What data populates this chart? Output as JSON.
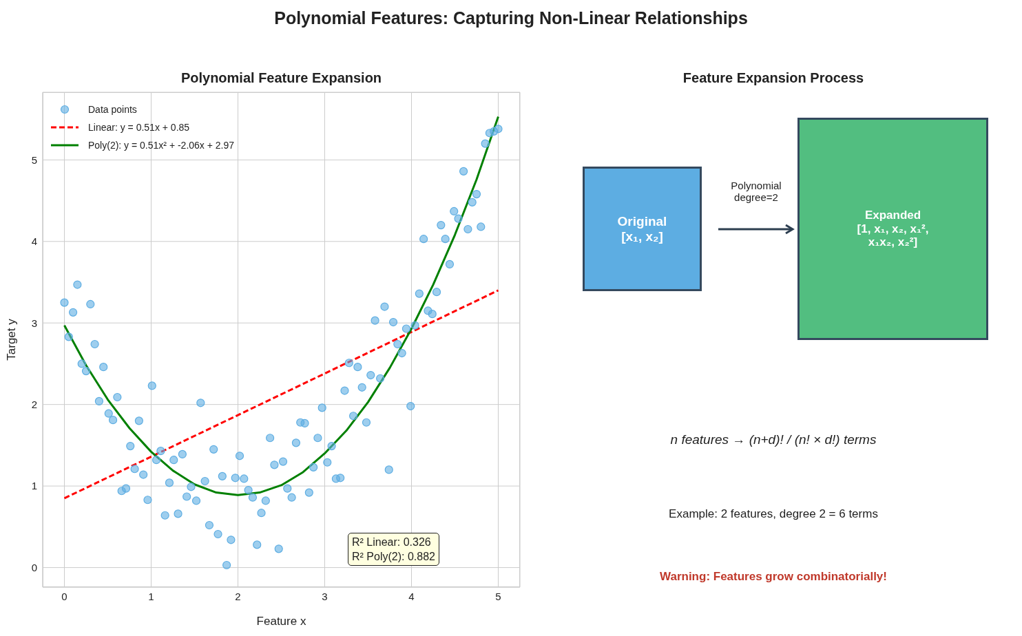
{
  "chart_data": [
    {
      "type": "scatter",
      "title": "Polynomial Features: Capturing Non-Linear Relationships",
      "subtitle": "Polynomial Feature Expansion",
      "xlabel": "Feature x",
      "ylabel": "Target y",
      "xlim": [
        -0.25,
        5.25
      ],
      "ylim": [
        -0.24,
        5.83
      ],
      "xticks": [
        0,
        1,
        2,
        3,
        4,
        5
      ],
      "yticks": [
        0,
        1,
        2,
        3,
        4,
        5
      ],
      "grid": true,
      "legend": "top left",
      "series": [
        {
          "name": "Data points",
          "type": "scatter",
          "marker": "circle",
          "color": "#5dade2",
          "x": [
            0,
            0.05,
            0.1,
            0.15,
            0.2,
            0.25,
            0.3,
            0.35,
            0.4,
            0.45,
            0.51,
            0.56,
            0.61,
            0.66,
            0.71,
            0.76,
            0.81,
            0.86,
            0.91,
            0.96,
            1.01,
            1.06,
            1.11,
            1.16,
            1.21,
            1.26,
            1.31,
            1.36,
            1.41,
            1.46,
            1.52,
            1.57,
            1.62,
            1.67,
            1.72,
            1.77,
            1.82,
            1.87,
            1.92,
            1.97,
            2.02,
            2.07,
            2.12,
            2.17,
            2.22,
            2.27,
            2.32,
            2.37,
            2.42,
            2.47,
            2.52,
            2.57,
            2.62,
            2.67,
            2.72,
            2.77,
            2.82,
            2.87,
            2.92,
            2.97,
            3.03,
            3.08,
            3.13,
            3.18,
            3.23,
            3.28,
            3.33,
            3.38,
            3.43,
            3.48,
            3.53,
            3.58,
            3.64,
            3.69,
            3.74,
            3.79,
            3.84,
            3.89,
            3.94,
            3.99,
            4.04,
            4.09,
            4.14,
            4.19,
            4.24,
            4.29,
            4.34,
            4.39,
            4.44,
            4.49,
            4.54,
            4.6,
            4.65,
            4.7,
            4.75,
            4.8,
            4.85,
            4.9,
            4.95,
            5
          ],
          "values": [
            3.25,
            2.83,
            3.13,
            3.47,
            2.5,
            2.41,
            3.23,
            2.74,
            2.04,
            2.46,
            1.89,
            1.81,
            2.09,
            0.94,
            0.97,
            1.49,
            1.21,
            1.8,
            1.14,
            0.83,
            2.23,
            1.32,
            1.43,
            0.64,
            1.04,
            1.32,
            0.66,
            1.39,
            0.87,
            0.99,
            0.82,
            2.02,
            1.06,
            0.52,
            1.45,
            0.41,
            1.12,
            0.03,
            0.34,
            1.1,
            1.37,
            1.09,
            0.95,
            0.86,
            0.28,
            0.67,
            0.82,
            1.59,
            1.26,
            0.23,
            1.3,
            0.97,
            0.86,
            1.53,
            1.78,
            1.77,
            0.92,
            1.23,
            1.59,
            1.96,
            1.29,
            1.49,
            1.09,
            1.1,
            2.17,
            2.51,
            1.86,
            2.46,
            2.21,
            1.78,
            2.36,
            3.03,
            2.32,
            3.2,
            1.2,
            3.01,
            2.74,
            2.63,
            2.93,
            1.98,
            2.97,
            3.36,
            4.03,
            3.15,
            3.11,
            3.38,
            4.2,
            4.03,
            3.72,
            4.37,
            4.28,
            4.86,
            4.15,
            4.48,
            4.58,
            4.18,
            5.2,
            5.33,
            5.35,
            5.38
          ]
        },
        {
          "name": "Linear: y = 0.51x + 0.85",
          "type": "line",
          "line_style": "dashed",
          "color": "#ff0000",
          "x": [
            0,
            5
          ],
          "values": [
            0.85,
            3.4
          ]
        },
        {
          "name": "Poly(2): y = 0.51x² + -2.06x + 2.97",
          "type": "line",
          "line_style": "solid",
          "color": "#008000",
          "x": [
            0,
            0.25,
            0.5,
            0.75,
            1,
            1.25,
            1.5,
            1.75,
            2,
            2.25,
            2.5,
            2.75,
            3,
            3.25,
            3.5,
            3.75,
            4,
            4.25,
            4.5,
            4.75,
            5
          ],
          "values": [
            2.97,
            2.48,
            2.06,
            1.71,
            1.42,
            1.19,
            1.02,
            0.92,
            0.89,
            0.92,
            1.01,
            1.17,
            1.4,
            1.68,
            2.03,
            2.45,
            2.93,
            3.47,
            4.08,
            4.76,
            5.53
          ]
        }
      ],
      "annotations": [
        "R² Linear: 0.326\nR² Poly(2): 0.882"
      ]
    },
    {
      "type": "other",
      "title": "Feature Expansion Process",
      "annotations": [
        "Original\n[x₁, x₂]",
        "Polynomial\ndegree=2",
        "Expanded\n[1, x₁, x₂, x₁²,\nx₁x₂, x₂²]",
        "n features → (n+d)! / (n! × d!) terms",
        "Example: 2 features, degree 2 = 6 terms",
        "Warning: Features grow combinatorially!"
      ]
    }
  ]
}
